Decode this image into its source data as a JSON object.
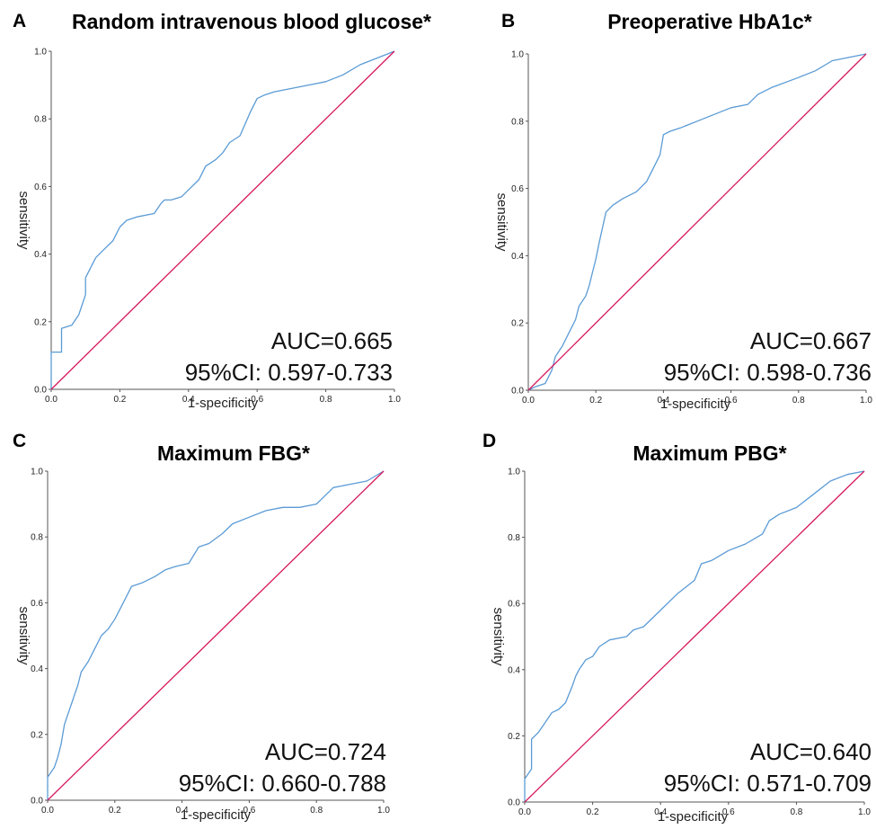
{
  "chart_data": [
    {
      "type": "line",
      "letter": "A",
      "title": "Random intravenous blood glucose*",
      "xlabel": "1-specificity",
      "ylabel": "sensitivity",
      "xlim": [
        0,
        1
      ],
      "ylim": [
        0,
        1
      ],
      "xticks": [
        "0.0",
        "0.2",
        "0.4",
        "0.6",
        "0.8",
        "1.0"
      ],
      "yticks": [
        "0.0",
        "0.2",
        "0.4",
        "0.6",
        "0.8",
        "1.0"
      ],
      "auc_text": "AUC=0.665",
      "ci_text": "95%CI: 0.597-0.733",
      "series": [
        {
          "name": "ROC",
          "color": "#5b9bd5",
          "x": [
            0,
            0,
            0.03,
            0.03,
            0.06,
            0.08,
            0.09,
            0.1,
            0.1,
            0.12,
            0.13,
            0.15,
            0.18,
            0.2,
            0.22,
            0.25,
            0.3,
            0.32,
            0.33,
            0.35,
            0.38,
            0.4,
            0.43,
            0.45,
            0.48,
            0.5,
            0.52,
            0.55,
            0.58,
            0.6,
            0.62,
            0.65,
            0.7,
            0.75,
            0.8,
            0.85,
            0.9,
            0.95,
            1.0
          ],
          "y": [
            0,
            0.11,
            0.11,
            0.18,
            0.19,
            0.22,
            0.25,
            0.28,
            0.33,
            0.37,
            0.39,
            0.41,
            0.44,
            0.48,
            0.5,
            0.51,
            0.52,
            0.55,
            0.56,
            0.56,
            0.57,
            0.59,
            0.62,
            0.66,
            0.68,
            0.7,
            0.73,
            0.75,
            0.82,
            0.86,
            0.87,
            0.88,
            0.89,
            0.9,
            0.91,
            0.93,
            0.96,
            0.98,
            1.0
          ]
        },
        {
          "name": "Reference",
          "color": "#d6185c",
          "x": [
            0,
            1
          ],
          "y": [
            0,
            1
          ]
        }
      ]
    },
    {
      "type": "line",
      "letter": "B",
      "title": "Preoperative HbA1c*",
      "xlabel": "1-specificity",
      "ylabel": "sensitivity",
      "xlim": [
        0,
        1
      ],
      "ylim": [
        0,
        1
      ],
      "xticks": [
        "0.0",
        "0.2",
        "0.4",
        "0.6",
        "0.8",
        "1.0"
      ],
      "yticks": [
        "0.0",
        "0.2",
        "0.4",
        "0.6",
        "0.8",
        "1.0"
      ],
      "auc_text": "AUC=0.667",
      "ci_text": "95%CI: 0.598-0.736",
      "series": [
        {
          "name": "ROC",
          "color": "#5b9bd5",
          "x": [
            0,
            0.02,
            0.05,
            0.07,
            0.08,
            0.1,
            0.12,
            0.14,
            0.15,
            0.17,
            0.18,
            0.19,
            0.2,
            0.21,
            0.23,
            0.25,
            0.28,
            0.32,
            0.35,
            0.37,
            0.39,
            0.4,
            0.42,
            0.45,
            0.5,
            0.55,
            0.6,
            0.65,
            0.68,
            0.72,
            0.8,
            0.85,
            0.9,
            0.95,
            1.0
          ],
          "y": [
            0,
            0.01,
            0.02,
            0.06,
            0.1,
            0.13,
            0.17,
            0.21,
            0.25,
            0.28,
            0.31,
            0.35,
            0.39,
            0.44,
            0.53,
            0.55,
            0.57,
            0.59,
            0.62,
            0.66,
            0.7,
            0.76,
            0.77,
            0.78,
            0.8,
            0.82,
            0.84,
            0.85,
            0.88,
            0.9,
            0.93,
            0.95,
            0.98,
            0.99,
            1.0
          ]
        },
        {
          "name": "Reference",
          "color": "#d6185c",
          "x": [
            0,
            1
          ],
          "y": [
            0,
            1
          ]
        }
      ]
    },
    {
      "type": "line",
      "letter": "C",
      "title": "Maximum FBG*",
      "xlabel": "1-specificity",
      "ylabel": "sensitivity",
      "xlim": [
        0,
        1
      ],
      "ylim": [
        0,
        1
      ],
      "xticks": [
        "0.0",
        "0.2",
        "0.4",
        "0.6",
        "0.8",
        "1.0"
      ],
      "yticks": [
        "0.0",
        "0.2",
        "0.4",
        "0.6",
        "0.8",
        "1.0"
      ],
      "auc_text": "AUC=0.724",
      "ci_text": "95%CI: 0.660-0.788",
      "series": [
        {
          "name": "ROC",
          "color": "#5b9bd5",
          "x": [
            0,
            0,
            0.02,
            0.03,
            0.04,
            0.05,
            0.06,
            0.07,
            0.08,
            0.09,
            0.1,
            0.12,
            0.14,
            0.16,
            0.18,
            0.2,
            0.22,
            0.25,
            0.28,
            0.32,
            0.35,
            0.38,
            0.42,
            0.45,
            0.48,
            0.52,
            0.55,
            0.6,
            0.65,
            0.7,
            0.75,
            0.8,
            0.82,
            0.85,
            0.9,
            0.95,
            1.0
          ],
          "y": [
            0,
            0.07,
            0.1,
            0.13,
            0.17,
            0.23,
            0.26,
            0.29,
            0.32,
            0.35,
            0.39,
            0.42,
            0.46,
            0.5,
            0.52,
            0.55,
            0.59,
            0.65,
            0.66,
            0.68,
            0.7,
            0.71,
            0.72,
            0.77,
            0.78,
            0.81,
            0.84,
            0.86,
            0.88,
            0.89,
            0.89,
            0.9,
            0.92,
            0.95,
            0.96,
            0.97,
            1.0
          ]
        },
        {
          "name": "Reference",
          "color": "#d6185c",
          "x": [
            0,
            1
          ],
          "y": [
            0,
            1
          ]
        }
      ]
    },
    {
      "type": "line",
      "letter": "D",
      "title": "Maximum PBG*",
      "xlabel": "1-specificity",
      "ylabel": "sensitivity",
      "xlim": [
        0,
        1
      ],
      "ylim": [
        0,
        1
      ],
      "xticks": [
        "0.0",
        "0.2",
        "0.4",
        "0.6",
        "0.8",
        "1.0"
      ],
      "yticks": [
        "0.0",
        "0.2",
        "0.4",
        "0.6",
        "0.8",
        "1.0"
      ],
      "auc_text": "AUC=0.640",
      "ci_text": "95%CI: 0.571-0.709",
      "series": [
        {
          "name": "ROC",
          "color": "#5b9bd5",
          "x": [
            0,
            0,
            0.02,
            0.02,
            0.04,
            0.06,
            0.08,
            0.1,
            0.12,
            0.14,
            0.15,
            0.16,
            0.18,
            0.2,
            0.22,
            0.25,
            0.3,
            0.32,
            0.35,
            0.4,
            0.45,
            0.5,
            0.52,
            0.55,
            0.6,
            0.65,
            0.7,
            0.72,
            0.75,
            0.8,
            0.85,
            0.9,
            0.95,
            1.0
          ],
          "y": [
            0,
            0.07,
            0.1,
            0.19,
            0.21,
            0.24,
            0.27,
            0.28,
            0.3,
            0.35,
            0.38,
            0.4,
            0.43,
            0.44,
            0.47,
            0.49,
            0.5,
            0.52,
            0.53,
            0.58,
            0.63,
            0.67,
            0.72,
            0.73,
            0.76,
            0.78,
            0.81,
            0.85,
            0.87,
            0.89,
            0.93,
            0.97,
            0.99,
            1.0
          ]
        },
        {
          "name": "Reference",
          "color": "#d6185c",
          "x": [
            0,
            1
          ],
          "y": [
            0,
            1
          ]
        }
      ]
    }
  ]
}
